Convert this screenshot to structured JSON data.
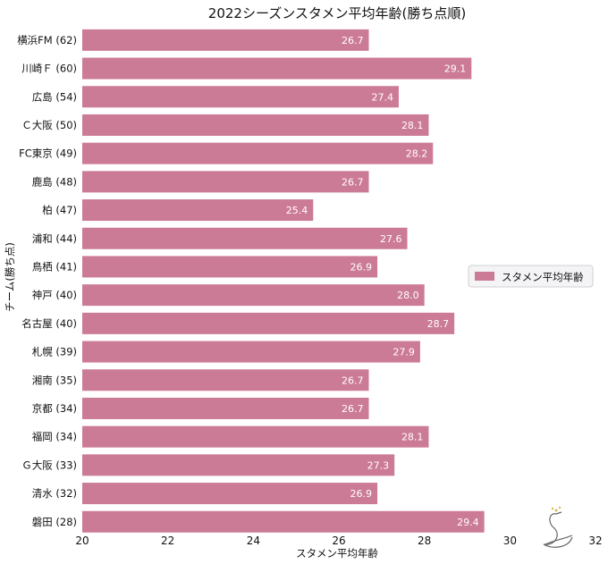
{
  "chart_data": {
    "type": "bar",
    "orientation": "horizontal",
    "title": "2022シーズンスタメン平均年齢(勝ち点順)",
    "xlabel": "スタメン平均年齢",
    "ylabel": "チーム(勝ち点)",
    "xlim": [
      20,
      32
    ],
    "xticks": [
      "20",
      "22",
      "24",
      "26",
      "28",
      "30",
      "32"
    ],
    "categories": [
      "横浜FM (62)",
      "川崎Ｆ (60)",
      "広島 (54)",
      "Ｃ大阪 (50)",
      "FC東京 (49)",
      "鹿島 (48)",
      "柏 (47)",
      "浦和 (44)",
      "鳥栖 (41)",
      "神戸 (40)",
      "名古屋 (40)",
      "札幌 (39)",
      "湘南 (35)",
      "京都 (34)",
      "福岡 (34)",
      "Ｇ大阪 (33)",
      "清水 (32)",
      "磐田 (28)"
    ],
    "series": [
      {
        "name": "スタメン平均年齢",
        "color": "#cc7b96",
        "values": [
          26.7,
          29.1,
          27.4,
          28.1,
          28.2,
          26.7,
          25.4,
          27.6,
          26.9,
          28.0,
          28.7,
          27.9,
          26.7,
          26.7,
          28.1,
          27.3,
          26.9,
          29.4
        ],
        "labels": [
          "26.7",
          "29.1",
          "27.4",
          "28.1",
          "28.2",
          "26.7",
          "25.4",
          "27.6",
          "26.9",
          "28.0",
          "28.7",
          "27.9",
          "26.7",
          "26.7",
          "28.1",
          "27.3",
          "26.9",
          "29.4"
        ]
      }
    ],
    "legend": {
      "position": "right",
      "label": "スタメン平均年齢"
    },
    "grid": false
  },
  "watermark": {
    "icon": "swan-icon"
  }
}
